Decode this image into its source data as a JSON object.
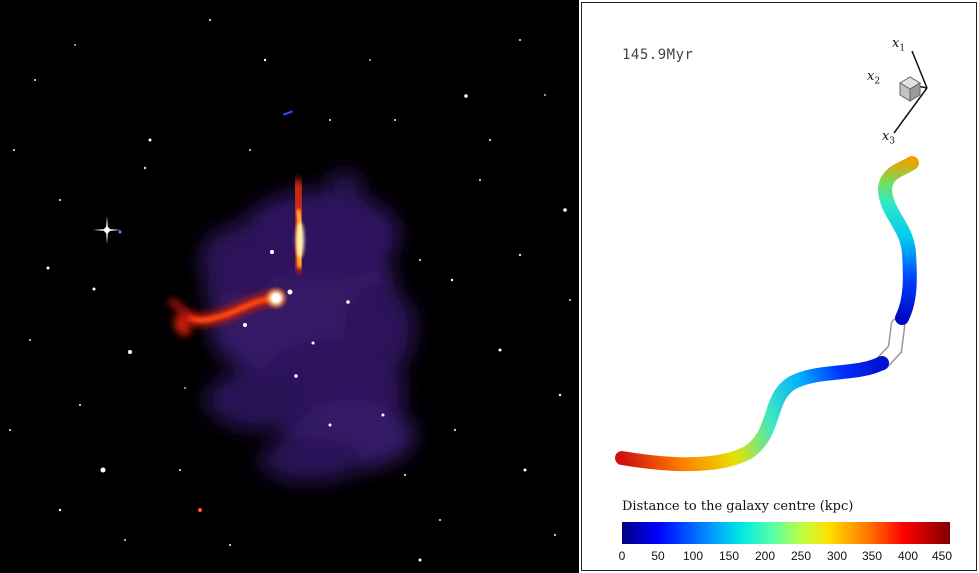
{
  "right_panel": {
    "time": "145.9Myr",
    "axes": [
      "x1",
      "x2",
      "x3"
    ],
    "colorbar": {
      "title": "Distance to the galaxy centre (kpc)",
      "ticks": [
        "0",
        "50",
        "100",
        "150",
        "200",
        "250",
        "300",
        "350",
        "400",
        "450"
      ]
    }
  }
}
